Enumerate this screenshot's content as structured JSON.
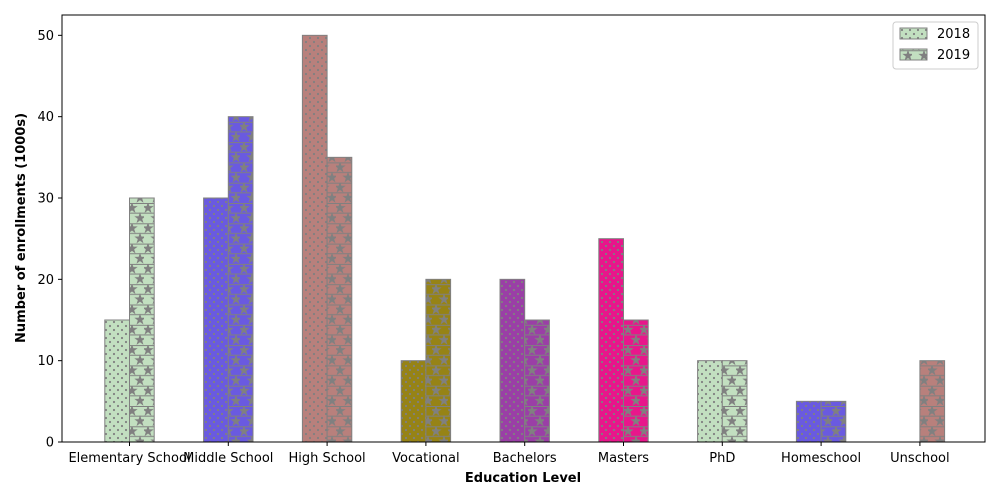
{
  "chart_data": {
    "type": "bar",
    "title": "",
    "xlabel": "Education Level",
    "ylabel": "Number of enrollments (1000s)",
    "categories": [
      "Elementary School",
      "Middle School",
      "High School",
      "Vocational",
      "Bachelors",
      "Masters",
      "PhD",
      "Homeschool",
      "Unschool"
    ],
    "bar_colors": [
      "#c2dfc0",
      "#6a5ae0",
      "#b8807c",
      "#968316",
      "#9a3fa6",
      "#e8168b",
      "#c2dfc0",
      "#6a5ae0",
      "#b8807c"
    ],
    "series": [
      {
        "name": "2018",
        "hatch": "dots",
        "values": [
          15,
          30,
          50,
          10,
          20,
          25,
          10,
          5,
          0
        ]
      },
      {
        "name": "2019",
        "hatch": "stars",
        "values": [
          30,
          40,
          35,
          20,
          15,
          15,
          10,
          5,
          10
        ]
      }
    ],
    "ylim": [
      0,
      52.5
    ],
    "yticks": [
      0,
      10,
      20,
      30,
      40,
      50
    ],
    "grid": false,
    "legend": "top-right",
    "edge_color": "#808080",
    "legend_swatch_color": "#c2dfc0"
  }
}
